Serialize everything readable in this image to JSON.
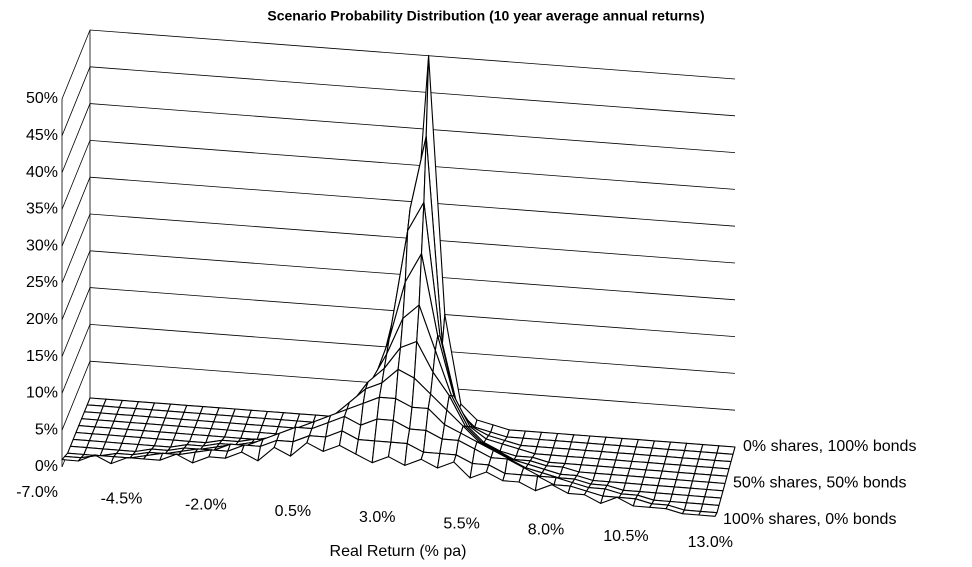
{
  "chart_data": {
    "type": "surface3d",
    "title": "Scenario Probability Distribution (10 year average annual returns)",
    "x_label": "Real Return (% pa)",
    "x": [
      -7,
      -6.5,
      -6,
      -5.5,
      -5,
      -4.5,
      -4,
      -3.5,
      -3,
      -2.5,
      -2,
      -1.5,
      -1,
      -0.5,
      0,
      0.5,
      1,
      1.5,
      2,
      2.5,
      3,
      3.5,
      4,
      4.5,
      5,
      5.5,
      6,
      6.5,
      7,
      7.5,
      8,
      8.5,
      9,
      9.5,
      10,
      10.5,
      11,
      11.5,
      12,
      12.5,
      13
    ],
    "xlim": [
      -7,
      13
    ],
    "xticks": [
      {
        "value": -7,
        "label": "-7.0%"
      },
      {
        "value": -4.5,
        "label": "-4.5%"
      },
      {
        "value": -2,
        "label": "-2.0%"
      },
      {
        "value": 0.5,
        "label": "0.5%"
      },
      {
        "value": 3,
        "label": "3.0%"
      },
      {
        "value": 5.5,
        "label": "5.5%"
      },
      {
        "value": 8,
        "label": "8.0%"
      },
      {
        "value": 10.5,
        "label": "10.5%"
      },
      {
        "value": 13,
        "label": "13.0%"
      }
    ],
    "ylim": [
      0,
      50
    ],
    "yticks": [
      {
        "value": 0,
        "label": "0%"
      },
      {
        "value": 5,
        "label": "5%"
      },
      {
        "value": 10,
        "label": "10%"
      },
      {
        "value": 15,
        "label": "15%"
      },
      {
        "value": 20,
        "label": "20%"
      },
      {
        "value": 25,
        "label": "25%"
      },
      {
        "value": 30,
        "label": "30%"
      },
      {
        "value": 35,
        "label": "35%"
      },
      {
        "value": 40,
        "label": "40%"
      },
      {
        "value": 45,
        "label": "45%"
      },
      {
        "value": 50,
        "label": "50%"
      }
    ],
    "grid": true,
    "line_color": "#000000",
    "series": [
      {
        "name": "0% shares, 100% bonds",
        "values": [
          0,
          0,
          0,
          0,
          0,
          0,
          0,
          0,
          0,
          0,
          0,
          0,
          0,
          0,
          0,
          0,
          0,
          0.5,
          1,
          5,
          20,
          50,
          15,
          3,
          1,
          0.5,
          0,
          0,
          0,
          0,
          0,
          0,
          0,
          0,
          0,
          0,
          0,
          0,
          0,
          0,
          0
        ]
      },
      {
        "name": null,
        "values": [
          0,
          0,
          0,
          0,
          0,
          0,
          0,
          0,
          0,
          0,
          0,
          0,
          0,
          0,
          0,
          0,
          0.5,
          1,
          3,
          10,
          30,
          40,
          12,
          3,
          1,
          0.5,
          0,
          0,
          0,
          0,
          0,
          0,
          0,
          0,
          0,
          0,
          0,
          0,
          0,
          0,
          0
        ]
      },
      {
        "name": null,
        "values": [
          0,
          0,
          0,
          0,
          0,
          0,
          0,
          0,
          0,
          0,
          0,
          0,
          0,
          0,
          0,
          0.5,
          1,
          3,
          6,
          15,
          28,
          32,
          14,
          5,
          2,
          1,
          0.5,
          0,
          0,
          0,
          0,
          0,
          0,
          0,
          0,
          0,
          0,
          0,
          0,
          0,
          0
        ]
      },
      {
        "name": null,
        "values": [
          0,
          0,
          0,
          0,
          0,
          0,
          0,
          0,
          0,
          0,
          0,
          0,
          0,
          0,
          0.5,
          1,
          2,
          4,
          8,
          14,
          22,
          26,
          15,
          7,
          3,
          1.5,
          1,
          0.5,
          0,
          0,
          0,
          0,
          0,
          0,
          0,
          0,
          0,
          0,
          0,
          0,
          0
        ]
      },
      {
        "name": null,
        "values": [
          0,
          0,
          0,
          0,
          0,
          0,
          0,
          0,
          0,
          0,
          0,
          0,
          0.5,
          0.5,
          1,
          2,
          3,
          5,
          9,
          13,
          18,
          20,
          14,
          8,
          4,
          2,
          1,
          0.5,
          0.5,
          0,
          0,
          0,
          0,
          0,
          0,
          0,
          0,
          0,
          0,
          0,
          0
        ]
      },
      {
        "name": "50% shares, 50% bonds",
        "values": [
          0,
          0,
          0,
          0,
          0,
          0,
          0,
          0,
          0,
          0.5,
          0.5,
          1,
          1,
          1.5,
          2,
          3,
          5,
          7,
          10,
          12,
          15,
          16,
          12,
          9,
          5,
          3,
          2,
          1,
          1,
          0.5,
          0.5,
          0,
          0,
          0,
          0,
          0,
          0,
          0,
          0,
          0,
          0
        ]
      },
      {
        "name": null,
        "values": [
          0,
          0,
          0,
          0,
          0,
          0,
          0,
          0.5,
          0.5,
          1,
          1,
          1.5,
          2,
          2,
          3,
          5,
          6,
          8,
          10,
          11,
          13,
          12,
          10,
          8,
          6,
          4,
          3,
          2,
          1.5,
          1,
          0.5,
          0.5,
          0,
          0,
          0,
          0,
          0,
          0,
          0,
          0,
          0
        ]
      },
      {
        "name": null,
        "values": [
          0,
          0,
          0,
          0,
          0,
          0.5,
          0.5,
          1,
          1,
          1.5,
          2,
          2,
          3,
          4,
          5,
          6,
          7,
          8,
          9,
          10,
          10,
          9,
          9,
          7,
          6,
          5,
          4,
          3,
          2,
          1.5,
          1,
          1,
          0.5,
          0.5,
          0,
          0,
          0,
          0,
          0,
          0,
          0
        ]
      },
      {
        "name": null,
        "values": [
          0,
          0,
          0,
          0.5,
          0.5,
          1,
          1,
          1.5,
          2,
          2,
          3,
          3,
          4,
          5,
          6,
          6,
          7,
          8,
          7,
          8,
          8,
          7,
          7,
          6,
          6,
          5,
          4,
          4,
          3,
          2,
          2,
          1.5,
          1,
          1,
          0.5,
          0.5,
          0,
          0,
          0,
          0,
          0
        ]
      },
      {
        "name": null,
        "values": [
          0.5,
          0.5,
          1,
          1,
          1,
          1.5,
          2,
          2,
          2.5,
          3,
          3,
          4,
          4,
          5,
          5,
          6,
          6,
          7,
          6,
          6,
          6,
          6,
          5,
          5,
          5,
          4,
          4,
          3,
          3,
          3,
          2,
          2,
          1.5,
          1,
          1,
          1,
          0.5,
          0.5,
          0,
          0,
          0
        ]
      },
      {
        "name": "100% shares, 0% bonds",
        "values": [
          1,
          1,
          2,
          1,
          2,
          2,
          2,
          3,
          2,
          3,
          3,
          4,
          3,
          5,
          4,
          6,
          5,
          6,
          5,
          4,
          5,
          4,
          5,
          4,
          5,
          3,
          4,
          3,
          3,
          2,
          3,
          2,
          2,
          1,
          2,
          1,
          1,
          1,
          0.5,
          0.5,
          0.5
        ]
      }
    ]
  }
}
